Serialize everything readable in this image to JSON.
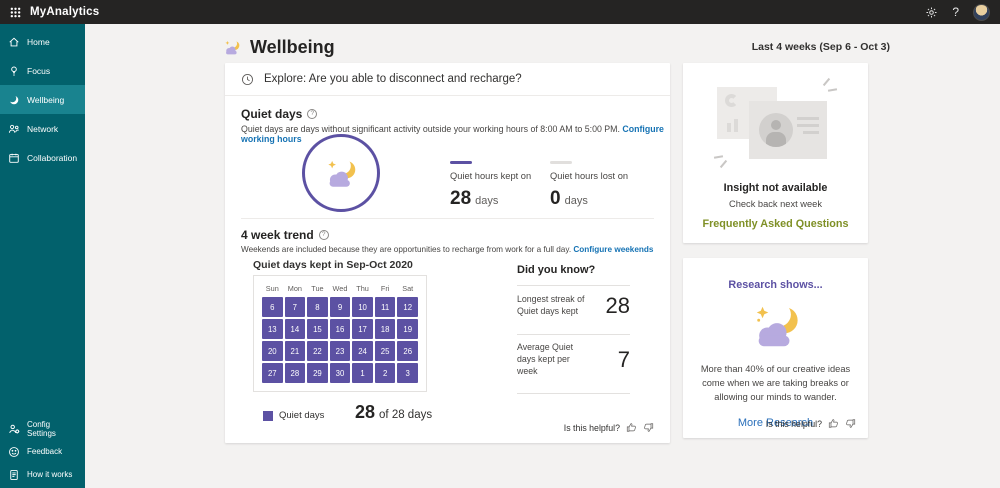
{
  "topbar": {
    "app_name": "MyAnalytics",
    "help_label": "?"
  },
  "sidebar": {
    "items": [
      {
        "label": "Home"
      },
      {
        "label": "Focus"
      },
      {
        "label": "Wellbeing"
      },
      {
        "label": "Network"
      },
      {
        "label": "Collaboration"
      }
    ],
    "footer_items": [
      {
        "label": "Config Settings"
      },
      {
        "label": "Feedback"
      },
      {
        "label": "How it works"
      }
    ]
  },
  "header": {
    "title": "Wellbeing",
    "date_range": "Last 4 weeks (Sep 6 - Oct 3)"
  },
  "main_card": {
    "explore_text": "Explore: Are you able to disconnect and recharge?",
    "quiet_days": {
      "title": "Quiet days",
      "description": "Quiet days are days without significant activity outside your working hours of 8:00 AM to 5:00 PM.",
      "link": "Configure working hours",
      "stats": [
        {
          "label": "Quiet hours kept on",
          "value": "28",
          "unit": "days"
        },
        {
          "label": "Quiet hours lost on",
          "value": "0",
          "unit": "days"
        }
      ]
    },
    "trend": {
      "title": "4 week trend",
      "description": "Weekends are included because they are opportunities to recharge from work for a full day.",
      "link": "Configure weekends",
      "calendar_title": "Quiet days kept in Sep-Oct 2020",
      "weekdays": [
        "Sun",
        "Mon",
        "Tue",
        "Wed",
        "Thu",
        "Fri",
        "Sat"
      ],
      "weeks": [
        [
          6,
          7,
          8,
          9,
          10,
          11,
          12
        ],
        [
          13,
          14,
          15,
          16,
          17,
          18,
          19
        ],
        [
          20,
          21,
          22,
          23,
          24,
          25,
          26
        ],
        [
          27,
          28,
          29,
          30,
          1,
          2,
          3
        ]
      ],
      "legend_label": "Quiet days",
      "summary_value": "28",
      "summary_suffix": "of 28 days"
    },
    "did_you_know": {
      "title": "Did you know?",
      "facts": [
        {
          "label": "Longest streak of Quiet days kept",
          "value": "28"
        },
        {
          "label": "Average Quiet days kept per week",
          "value": "7"
        }
      ]
    },
    "helpful_label": "Is this helpful?"
  },
  "insight_card": {
    "title": "Insight not available",
    "subtitle": "Check back next week",
    "link": "Frequently Asked Questions"
  },
  "research_card": {
    "title": "Research shows...",
    "text": "More than 40% of our creative ideas come when we are taking breaks or allowing our minds to wander.",
    "link": "More Research",
    "helpful_label": "Is this helpful?"
  },
  "colors": {
    "topbar_dark": "#252423",
    "sidebar_teal": "#02616C",
    "sidebar_active_teal": "#19838F",
    "accent_purple": "#5C51A3",
    "moon_yellow": "#F2C14E",
    "cloud_lavender": "#B7AADF",
    "link_blue": "#1673B4",
    "research_link_blue": "#2A6FBA",
    "faq_green": "#7F9026",
    "kept_dash": "#5C51A3",
    "lost_dash": "#E1DFDD",
    "page_bg": "#F3F2F1"
  }
}
